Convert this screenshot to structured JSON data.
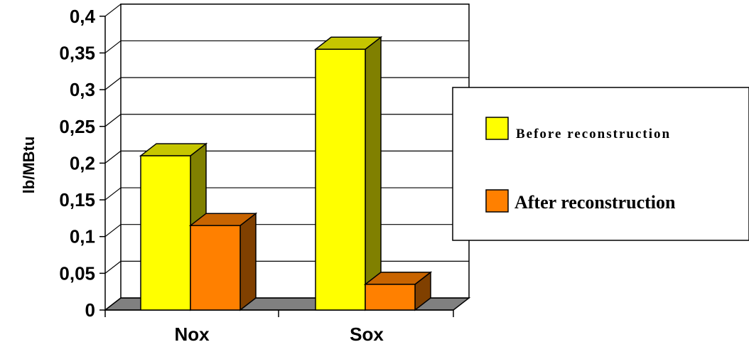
{
  "chart_data": {
    "type": "bar",
    "categories": [
      "Nox",
      "Sox"
    ],
    "series": [
      {
        "name": "Before reconstruction",
        "values": [
          0.21,
          0.355
        ],
        "color": "#ffff00",
        "side": "#808000",
        "top": "#c6c600"
      },
      {
        "name": "After reconstruction",
        "values": [
          0.115,
          0.035
        ],
        "color": "#ff8000",
        "side": "#804000",
        "top": "#c86400"
      }
    ],
    "title": "",
    "xlabel": "",
    "ylabel": "lb/MBtu",
    "ylim": [
      0,
      0.4
    ],
    "yticks": [
      0,
      0.05,
      0.1,
      0.15,
      0.2,
      0.25,
      0.3,
      0.35,
      0.4
    ],
    "ytick_labels": [
      "0",
      "0,05",
      "0,1",
      "0,15",
      "0,2",
      "0,25",
      "0,3",
      "0,35",
      "0,4"
    ],
    "grid": true,
    "legend": "right"
  }
}
